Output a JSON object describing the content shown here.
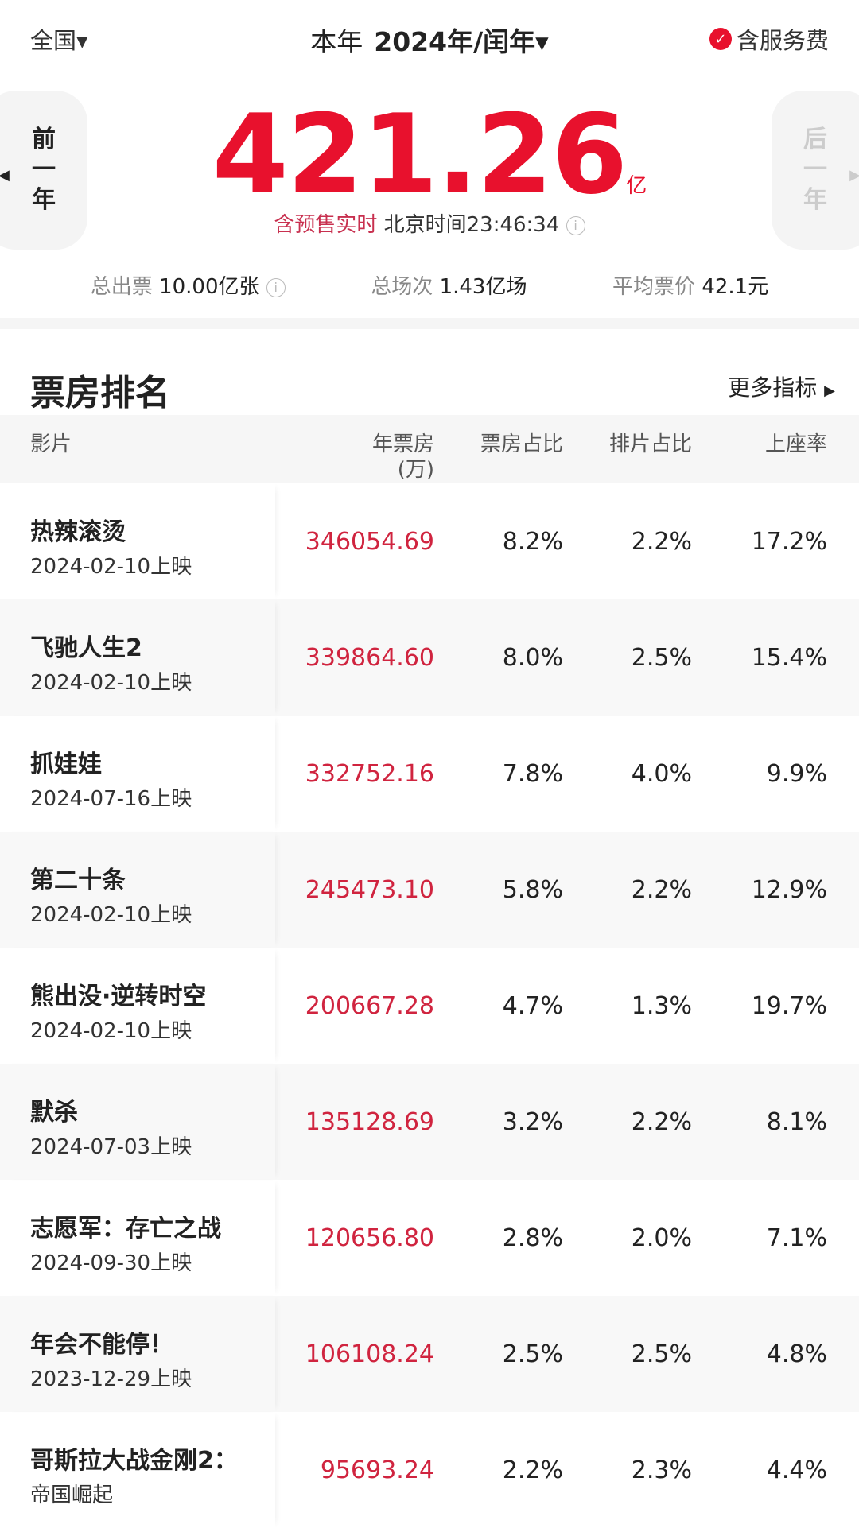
{
  "header": {
    "region": "全国",
    "period_label": "本年",
    "year": "2024年/闰年",
    "service_fee": "含服务费"
  },
  "hero": {
    "prev": [
      "前",
      "一",
      "年"
    ],
    "next": [
      "后",
      "一",
      "年"
    ],
    "total": "421.26",
    "unit": "亿",
    "realtime_red": "含预售实时",
    "realtime": "北京时间23:46:34"
  },
  "stats": [
    {
      "label": "总出票",
      "value": "10.00亿张"
    },
    {
      "label": "总场次",
      "value": "1.43亿场"
    },
    {
      "label": "平均票价",
      "value": "42.1元"
    }
  ],
  "ranking": {
    "title": "票房排名",
    "more": "更多指标",
    "columns": [
      "影片",
      "年票房",
      "(万)",
      "票房占比",
      "排片占比",
      "上座率"
    ],
    "rows": [
      {
        "name": "热辣滚烫",
        "date": "2024-02-10上映",
        "box": "346054.69",
        "share": "8.2%",
        "sched": "2.2%",
        "occ": "17.2%"
      },
      {
        "name": "飞驰人生2",
        "date": "2024-02-10上映",
        "box": "339864.60",
        "share": "8.0%",
        "sched": "2.5%",
        "occ": "15.4%"
      },
      {
        "name": "抓娃娃",
        "date": "2024-07-16上映",
        "box": "332752.16",
        "share": "7.8%",
        "sched": "4.0%",
        "occ": "9.9%"
      },
      {
        "name": "第二十条",
        "date": "2024-02-10上映",
        "box": "245473.10",
        "share": "5.8%",
        "sched": "2.2%",
        "occ": "12.9%"
      },
      {
        "name": "熊出没·逆转时空",
        "date": "2024-02-10上映",
        "box": "200667.28",
        "share": "4.7%",
        "sched": "1.3%",
        "occ": "19.7%"
      },
      {
        "name": "默杀",
        "date": "2024-07-03上映",
        "box": "135128.69",
        "share": "3.2%",
        "sched": "2.2%",
        "occ": "8.1%"
      },
      {
        "name": "志愿军：存亡之战",
        "date": "2024-09-30上映",
        "box": "120656.80",
        "share": "2.8%",
        "sched": "2.0%",
        "occ": "7.1%"
      },
      {
        "name": "年会不能停！",
        "date": "2023-12-29上映",
        "box": "106108.24",
        "share": "2.5%",
        "sched": "2.5%",
        "occ": "4.8%"
      },
      {
        "name": "哥斯拉大战金刚2：",
        "date": "帝国崛起",
        "box": "95693.24",
        "share": "2.2%",
        "sched": "2.3%",
        "occ": "4.4%"
      }
    ]
  },
  "colors": {
    "accent": "#e8112d"
  }
}
